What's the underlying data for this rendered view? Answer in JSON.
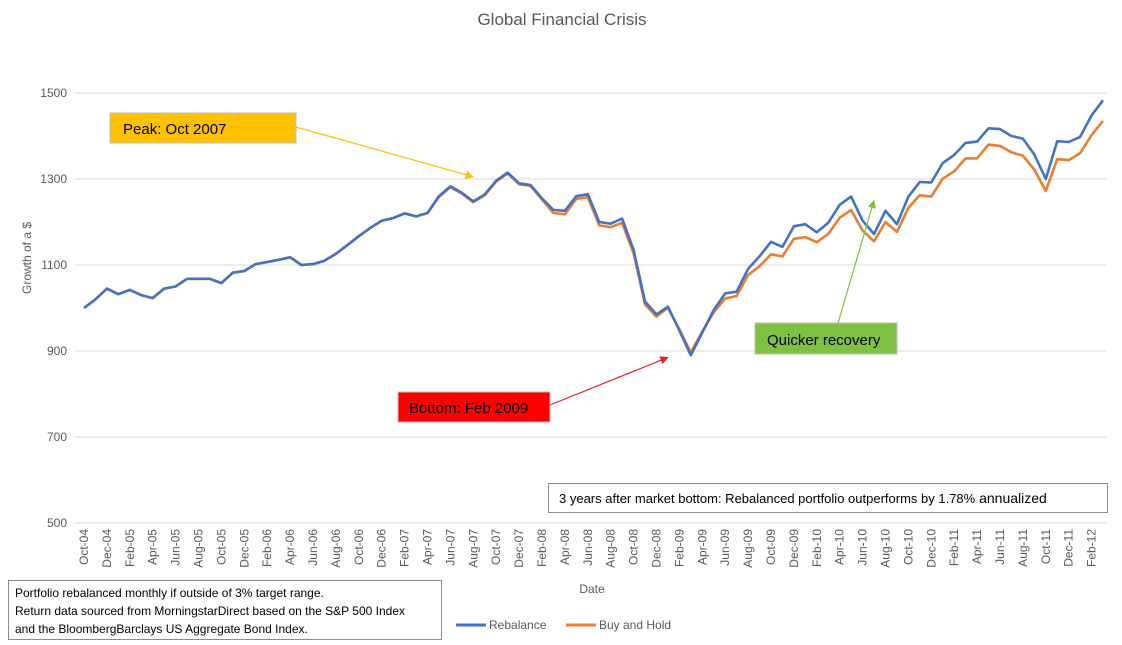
{
  "chart_data": {
    "type": "line",
    "title": "Global Financial Crisis",
    "xlabel": "Date",
    "ylabel": "Growth of a $",
    "ylim": [
      500,
      1500
    ],
    "yticks": [
      500,
      700,
      900,
      1100,
      1300,
      1500
    ],
    "grid": true,
    "legend": "bottom-center",
    "x_start": "Oct-04",
    "x_tick_labels": [
      "Oct-04",
      "Dec-04",
      "Feb-05",
      "Apr-05",
      "Jun-05",
      "Aug-05",
      "Oct-05",
      "Dec-05",
      "Feb-06",
      "Apr-06",
      "Jun-06",
      "Aug-06",
      "Oct-06",
      "Dec-06",
      "Feb-07",
      "Apr-07",
      "Jun-07",
      "Aug-07",
      "Oct-07",
      "Dec-07",
      "Feb-08",
      "Apr-08",
      "Jun-08",
      "Aug-08",
      "Oct-08",
      "Dec-08",
      "Feb-09",
      "Apr-09",
      "Jun-09",
      "Aug-09",
      "Oct-09",
      "Dec-09",
      "Feb-10",
      "Apr-10",
      "Jun-10",
      "Aug-10",
      "Oct-10",
      "Dec-10",
      "Feb-11",
      "Apr-11",
      "Jun-11",
      "Aug-11",
      "Oct-11",
      "Dec-11",
      "Feb-12"
    ],
    "series": [
      {
        "name": "Rebalance",
        "color": "#4472c4",
        "values": [
          1000,
          1020,
          1045,
          1032,
          1042,
          1030,
          1023,
          1045,
          1050,
          1068,
          1068,
          1068,
          1058,
          1082,
          1086,
          1102,
          1107,
          1112,
          1118,
          1100,
          1102,
          1110,
          1126,
          1146,
          1167,
          1186,
          1203,
          1209,
          1220,
          1213,
          1221,
          1260,
          1283,
          1268,
          1248,
          1264,
          1296,
          1315,
          1290,
          1286,
          1255,
          1228,
          1226,
          1260,
          1265,
          1200,
          1196,
          1208,
          1135,
          1015,
          985,
          1003,
          948,
          890,
          943,
          995,
          1034,
          1038,
          1091,
          1120,
          1154,
          1142,
          1190,
          1195,
          1176,
          1198,
          1240,
          1259,
          1203,
          1172,
          1226,
          1195,
          1259,
          1293,
          1292,
          1337,
          1356,
          1384,
          1387,
          1418,
          1416,
          1400,
          1394,
          1357,
          1300,
          1388,
          1386,
          1398,
          1448,
          1483
        ]
      },
      {
        "name": "Buy and Hold",
        "color": "#ed7d31",
        "values": [
          1000,
          1020,
          1045,
          1032,
          1042,
          1030,
          1023,
          1045,
          1050,
          1068,
          1068,
          1068,
          1058,
          1082,
          1086,
          1102,
          1107,
          1112,
          1118,
          1100,
          1102,
          1110,
          1126,
          1146,
          1167,
          1186,
          1203,
          1209,
          1220,
          1213,
          1221,
          1258,
          1281,
          1266,
          1246,
          1262,
          1294,
          1313,
          1288,
          1284,
          1252,
          1221,
          1218,
          1254,
          1258,
          1192,
          1188,
          1198,
          1127,
          1008,
          980,
          1001,
          950,
          897,
          945,
          990,
          1022,
          1028,
          1077,
          1097,
          1125,
          1120,
          1161,
          1165,
          1153,
          1172,
          1210,
          1228,
          1180,
          1155,
          1200,
          1177,
          1233,
          1262,
          1259,
          1301,
          1318,
          1348,
          1348,
          1380,
          1377,
          1362,
          1354,
          1322,
          1272,
          1346,
          1344,
          1360,
          1402,
          1435
        ]
      }
    ],
    "annotations": [
      {
        "text": "Peak: Oct 2007",
        "box_color": "#ffc000",
        "arrow_color": "#ffc000",
        "points_to": {
          "x": "Aug-07",
          "y": 1305
        }
      },
      {
        "text": "Bottom: Feb 2009",
        "box_color": "#ff0000",
        "arrow_color": "#e8202c",
        "points_to": {
          "x": "Jan-09",
          "y": 885
        }
      },
      {
        "text": "Quicker recovery",
        "box_color": "#7fc241",
        "arrow_color": "#7fc241",
        "points_to": {
          "x": "Jul-10",
          "y": 1250
        }
      }
    ]
  },
  "summary_box": {
    "text": "3 years after market bottom: Rebalanced portfolio outperforms by 1.78%",
    "suffix": " annualized"
  },
  "notes": {
    "line1": "Portfolio rebalanced monthly if outside of 3% target range.",
    "line2": "Return data sourced from MorningstarDirect based on the S&P 500 Index",
    "line3": "and the BloombergBarclays US Aggregate Bond Index."
  }
}
